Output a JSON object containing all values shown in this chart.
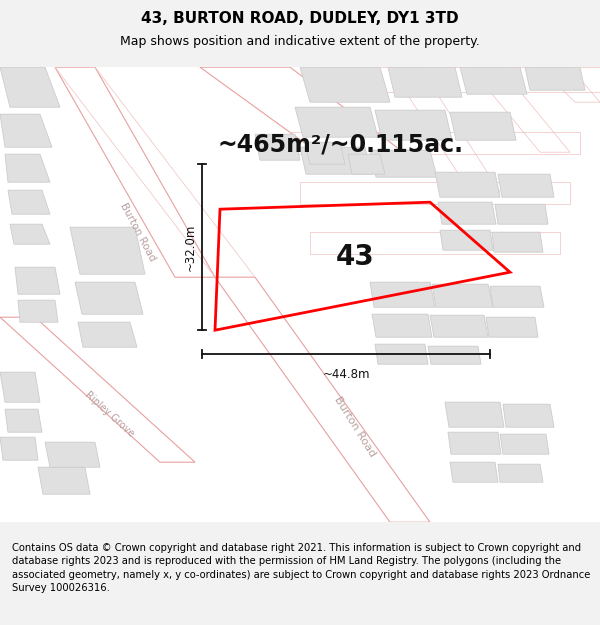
{
  "title": "43, BURTON ROAD, DUDLEY, DY1 3TD",
  "subtitle": "Map shows position and indicative extent of the property.",
  "area_text": "~465m²/~0.115ac.",
  "label_number": "43",
  "dim_width": "~44.8m",
  "dim_height": "~32.0m",
  "footer": "Contains OS data © Crown copyright and database right 2021. This information is subject to Crown copyright and database rights 2023 and is reproduced with the permission of HM Land Registry. The polygons (including the associated geometry, namely x, y co-ordinates) are subject to Crown copyright and database rights 2023 Ordnance Survey 100026316.",
  "bg_color": "#f2f2f2",
  "map_bg": "#ffffff",
  "road_line_color": "#e8a0a0",
  "building_color": "#e0e0e0",
  "building_outline": "#cccccc",
  "road_label_color": "#b8a0a0",
  "highlight_color": "#ff0000",
  "dim_line_color": "#111111",
  "title_fontsize": 11,
  "subtitle_fontsize": 9,
  "area_fontsize": 17,
  "label_fontsize": 20,
  "dim_fontsize": 8.5,
  "footer_fontsize": 7.2,
  "road_lw": 0.7,
  "building_lw": 0.6
}
